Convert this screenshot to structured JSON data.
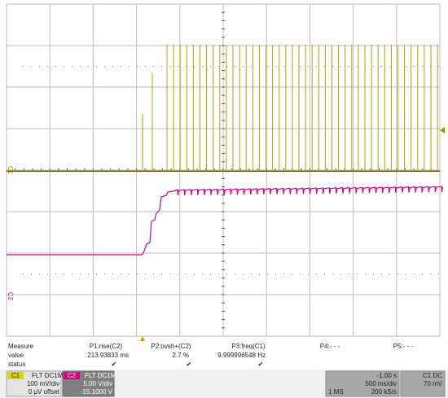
{
  "trace_labels": [
    "C1",
    "C2"
  ],
  "measure": {
    "label": "Measure",
    "columns": [
      "P1:rise(C2)",
      "P2:ovsh+(C2)",
      "P3:freq(C1)",
      "P4:- - -",
      "P5:- - -"
    ],
    "rows": [
      {
        "label": "value",
        "cells": [
          "213.93833 ms",
          "2.7 %",
          "9.999996548 Hz"
        ]
      },
      {
        "label": "status",
        "cells": [
          "✔",
          "✔",
          "✔"
        ]
      }
    ]
  },
  "channels": [
    {
      "name": "C1",
      "coupling": "FLT  DC1M",
      "scale": "100 mV/div",
      "offset": "0 µV offset"
    },
    {
      "name": "C2",
      "coupling": "FLT  DC1M",
      "scale": "5.00 V/div",
      "offset": "-15.1000 V"
    }
  ],
  "timebase": {
    "delay": "-1.00 s",
    "scale": "500 ms/div",
    "samples": "1 MS",
    "rate": "200 kS/s"
  },
  "trigger": {
    "source": "C1 DC",
    "level": "70 mV"
  }
}
